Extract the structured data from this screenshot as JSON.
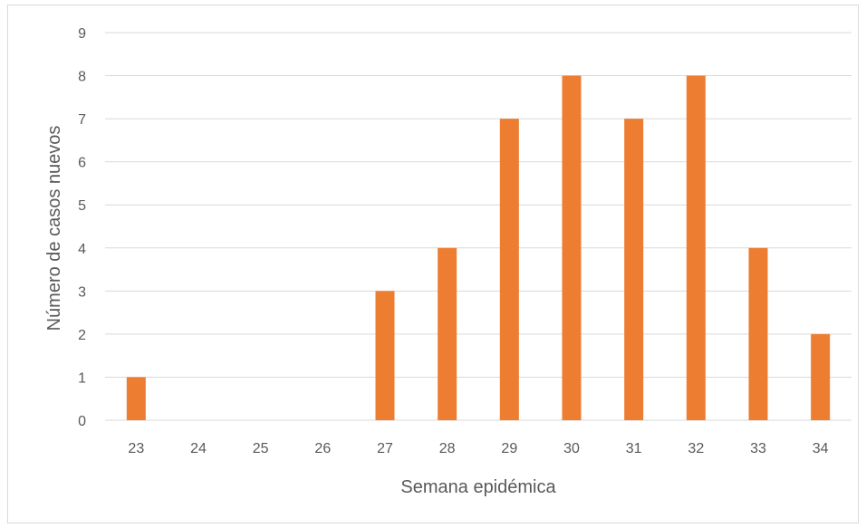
{
  "chart_data": {
    "type": "bar",
    "title": "",
    "xlabel": "Semana epidémica",
    "ylabel": "Número de casos nuevos",
    "categories": [
      "23",
      "24",
      "25",
      "26",
      "27",
      "28",
      "29",
      "30",
      "31",
      "32",
      "33",
      "34"
    ],
    "values": [
      1,
      0,
      0,
      0,
      3,
      4,
      7,
      8,
      7,
      8,
      4,
      2
    ],
    "ylim": [
      0,
      9
    ],
    "yticks": [
      "0",
      "1",
      "2",
      "3",
      "4",
      "5",
      "6",
      "7",
      "8",
      "9"
    ],
    "grid": true,
    "legend": "none",
    "colors": {
      "bar": "#ED7D31",
      "grid": "#D9D9D9",
      "text": "#595959"
    }
  }
}
